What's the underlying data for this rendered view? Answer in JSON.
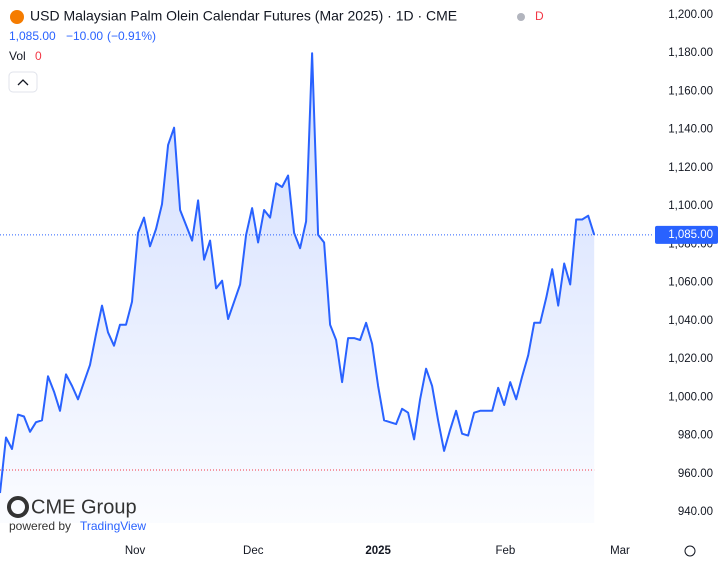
{
  "chart_data": {
    "type": "line",
    "title": "USD Malaysian Palm Olein Calendar Futures (Mar 2025) · 1D · CME",
    "status": "D",
    "last": "1,085.00",
    "change": "−10.00",
    "change_pct": "(−0.91%)",
    "volume_label": "Vol",
    "volume": "0",
    "logo": "CME Group",
    "powered_by": "powered by",
    "provider": "TradingView",
    "color": "#2962ff",
    "values": [
      950,
      979,
      973,
      991,
      990,
      982,
      987,
      988,
      1011,
      1003,
      993,
      1012,
      1006,
      999,
      1008,
      1017,
      1033,
      1048,
      1034,
      1027,
      1038,
      1038,
      1050,
      1086,
      1094,
      1079,
      1088,
      1101,
      1132,
      1141,
      1098,
      1090,
      1082,
      1103,
      1072,
      1082,
      1057,
      1061,
      1041,
      1050,
      1059,
      1085,
      1099,
      1081,
      1098,
      1094,
      1112,
      1110,
      1116,
      1086,
      1078,
      1092,
      1180,
      1085,
      1081,
      1038,
      1030,
      1008,
      1031,
      1031,
      1030,
      1039,
      1028,
      1006,
      988,
      987,
      986,
      994,
      992,
      978,
      999,
      1015,
      1006,
      988,
      972,
      983,
      993,
      981,
      980,
      992,
      993,
      993,
      993,
      1005,
      996,
      1008,
      999,
      1011,
      1022,
      1039,
      1039,
      1052,
      1067,
      1048,
      1070,
      1059,
      1093,
      1093,
      1095,
      1085
    ],
    "price_line": {
      "value": 1085,
      "label": "1,085.00",
      "color": "#2962ff"
    },
    "reference_line": {
      "value": 962,
      "color": "#f23645"
    },
    "xlim": [
      0,
      108.3
    ],
    "xticks": [
      {
        "value": 22.5,
        "label": "Nov"
      },
      {
        "value": 42.2,
        "label": "Dec"
      },
      {
        "value": 63,
        "label": "2025"
      },
      {
        "value": 84.2,
        "label": "Feb"
      },
      {
        "value": 103.3,
        "label": "Mar"
      }
    ],
    "ylim": [
      934.3,
      1207.8
    ],
    "yticks": [
      {
        "value": 940,
        "label": "940.00"
      },
      {
        "value": 960,
        "label": "960.00"
      },
      {
        "value": 980,
        "label": "980.00"
      },
      {
        "value": 1000,
        "label": "1,000.00"
      },
      {
        "value": 1020,
        "label": "1,020.00"
      },
      {
        "value": 1040,
        "label": "1,040.00"
      },
      {
        "value": 1060,
        "label": "1,060.00"
      },
      {
        "value": 1080,
        "label": "1,080.00"
      },
      {
        "value": 1100,
        "label": "1,100.00"
      },
      {
        "value": 1120,
        "label": "1,120.00"
      },
      {
        "value": 1140,
        "label": "1,140.00"
      },
      {
        "value": 1160,
        "label": "1,160.00"
      },
      {
        "value": 1180,
        "label": "1,180.00"
      },
      {
        "value": 1200,
        "label": "1,200.00"
      }
    ],
    "grid": false
  }
}
